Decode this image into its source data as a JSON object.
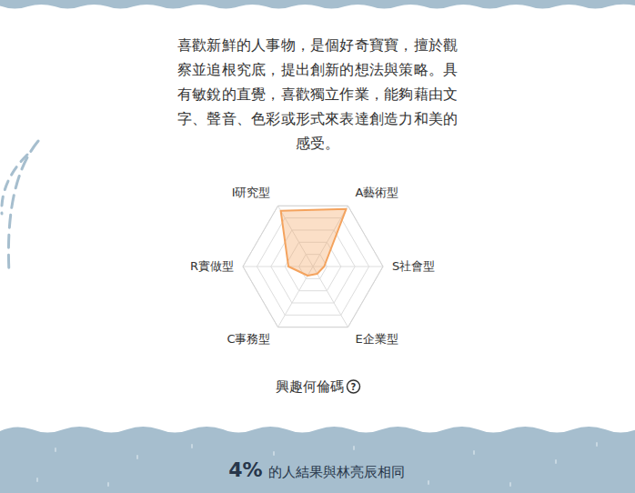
{
  "description": "喜歡新鮮的人事物，是個好奇寶寶，擅於觀察並追根究底，提出創新的想法與策略。具有敏銳的直覺，喜歡獨立作業，能夠藉由文字、聲音、色彩或形式來表達創造力和美的感受。",
  "chart_data": {
    "type": "radar",
    "categories": [
      "I研究型",
      "A藝術型",
      "S社會型",
      "E企業型",
      "C事務型",
      "R實做型"
    ],
    "values": [
      92,
      95,
      16,
      12,
      15,
      35
    ],
    "color": "#f4a35e",
    "ylim": [
      0,
      100
    ],
    "yticks": [
      20,
      40,
      60,
      80,
      100
    ],
    "grid": true,
    "tick_labels": false
  },
  "caption": "興趣何倫碼",
  "help_icon": "?",
  "stat": {
    "value": "4%",
    "text": "的人結果與林亮辰相同"
  }
}
